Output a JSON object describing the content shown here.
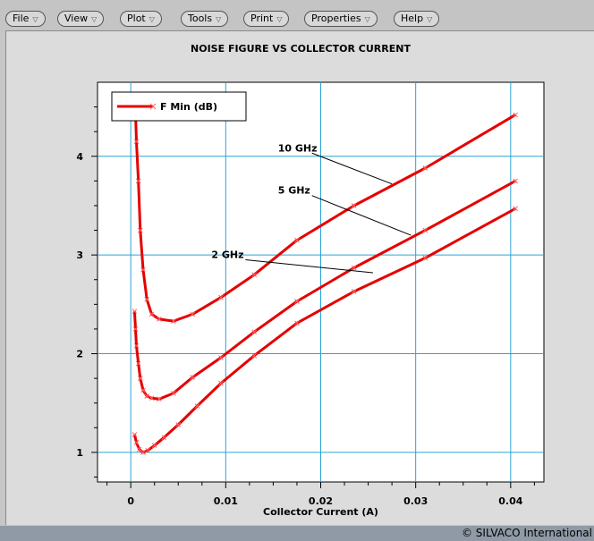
{
  "menu": [
    {
      "label": "File",
      "arrow": "▽"
    },
    {
      "label": "View",
      "arrow": "▽"
    },
    {
      "label": "Plot",
      "arrow": "▽"
    },
    {
      "label": "Tools",
      "arrow": "▽"
    },
    {
      "label": "Print",
      "arrow": "▽"
    },
    {
      "label": "Properties",
      "arrow": "▽"
    },
    {
      "label": "Help",
      "arrow": "▽"
    }
  ],
  "footer": {
    "copyright": "© SILVACO International"
  },
  "colors": {
    "grid": "#2aa3d6",
    "series": "#e60000",
    "background": "#ffffff",
    "panel": "#dcdcdc"
  },
  "chart_data": {
    "type": "line",
    "title": "NOISE FIGURE VS COLLECTOR CURRENT",
    "xlabel": "Collector Current (A)",
    "ylabel": "",
    "xlim": [
      -0.0035,
      0.0435
    ],
    "ylim": [
      0.7,
      4.75
    ],
    "xticks": [
      0,
      0.01,
      0.02,
      0.03,
      0.04
    ],
    "xtick_labels": [
      "0",
      "0.01",
      "0.02",
      "0.03",
      "0.04"
    ],
    "yticks": [
      1,
      2,
      3,
      4
    ],
    "ytick_labels": [
      "1",
      "2",
      "3",
      "4"
    ],
    "grid": true,
    "legend": {
      "position": "top-left",
      "entries": [
        "F Min (dB)"
      ]
    },
    "series": [
      {
        "name": "F Min (dB)",
        "label": "10 GHz",
        "x": [
          0.0005,
          0.0006,
          0.0008,
          0.001,
          0.0013,
          0.0017,
          0.0022,
          0.003,
          0.0045,
          0.0065,
          0.0095,
          0.013,
          0.0175,
          0.0235,
          0.031,
          0.0405
        ],
        "y": [
          4.45,
          4.15,
          3.75,
          3.25,
          2.85,
          2.55,
          2.4,
          2.35,
          2.33,
          2.4,
          2.57,
          2.8,
          3.15,
          3.5,
          3.88,
          4.42
        ]
      },
      {
        "name": "F Min (dB)",
        "label": "5 GHz",
        "x": [
          0.0004,
          0.0005,
          0.0006,
          0.0008,
          0.001,
          0.0013,
          0.0017,
          0.0022,
          0.003,
          0.0045,
          0.0065,
          0.0095,
          0.013,
          0.0175,
          0.0235,
          0.031,
          0.0405
        ],
        "y": [
          2.43,
          2.25,
          2.08,
          1.9,
          1.75,
          1.63,
          1.57,
          1.55,
          1.54,
          1.6,
          1.76,
          1.96,
          2.22,
          2.53,
          2.87,
          3.25,
          3.75
        ]
      },
      {
        "name": "F Min (dB)",
        "label": "2 GHz",
        "x": [
          0.0004,
          0.0006,
          0.0009,
          0.0013,
          0.0018,
          0.0025,
          0.0035,
          0.005,
          0.007,
          0.0095,
          0.013,
          0.0175,
          0.0235,
          0.031,
          0.0405
        ],
        "y": [
          1.18,
          1.1,
          1.03,
          1.0,
          1.02,
          1.07,
          1.15,
          1.28,
          1.47,
          1.7,
          1.98,
          2.31,
          2.63,
          2.97,
          3.47
        ]
      }
    ],
    "annotations": [
      {
        "text": "10 GHz",
        "x": 0.0155,
        "y": 4.05,
        "points_to": {
          "x": 0.0275,
          "y": 3.72
        }
      },
      {
        "text": "5 GHz",
        "x": 0.0155,
        "y": 3.62,
        "points_to": {
          "x": 0.0295,
          "y": 3.2
        }
      },
      {
        "text": "2 GHz",
        "x": 0.0085,
        "y": 2.97,
        "points_to": {
          "x": 0.0255,
          "y": 2.82
        }
      }
    ]
  }
}
